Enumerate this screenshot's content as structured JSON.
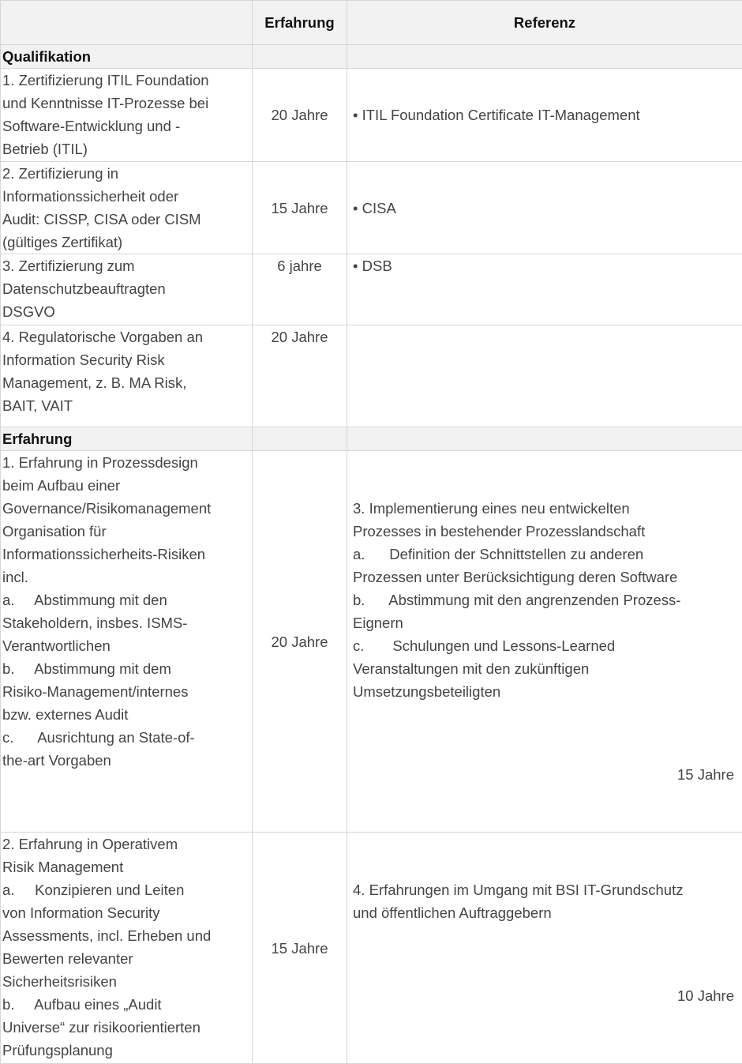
{
  "header": {
    "col1": "",
    "col2": "Erfahrung",
    "col3": "Referenz"
  },
  "sections": [
    {
      "title": "Qualifikation",
      "rows": [
        {
          "requirement": "1. Zertifizierung ITIL Foundation\nund Kenntnisse IT-Prozesse bei\nSoftware-Entwicklung und -\nBetrieb (ITIL)",
          "experience": "20 Jahre",
          "reference": "• ITIL Foundation Certificate IT-Management",
          "reference_years": ""
        },
        {
          "requirement": "2. Zertifizierung in\nInformationssicherheit oder\nAudit: CISSP, CISA oder CISM\n(gültiges Zertifikat)",
          "experience": "15 Jahre",
          "reference": "• CISA",
          "reference_years": ""
        },
        {
          "requirement": "3. Zertifizierung zum\nDatenschutzbeauftragten\nDSGVO",
          "experience": "6 jahre",
          "reference": "• DSB",
          "reference_years": ""
        },
        {
          "requirement": "4. Regulatorische Vorgaben an\nInformation Security Risk\nManagement, z. B. MA Risk,\nBAIT, VAIT",
          "experience": "20 Jahre",
          "reference": "",
          "reference_years": ""
        }
      ]
    },
    {
      "title": "Erfahrung",
      "rows": [
        {
          "requirement": "1. Erfahrung in Prozessdesign\nbeim Aufbau einer\nGovernance/Risikomanagement\nOrganisation für\nInformationssicherheits-Risiken\nincl.\na.     Abstimmung mit den\nStakeholdern, insbes. ISMS-\nVerantwortlichen\nb.     Abstimmung mit dem\nRisiko-Management/internes\nbzw. externes Audit\nc.      Ausrichtung an State-of-\nthe-art Vorgaben",
          "experience": "20 Jahre",
          "reference": "3. Implementierung eines neu entwickelten\nProzesses in bestehender Prozesslandschaft\na.      Definition der Schnittstellen zu anderen\nProzessen unter Berücksichtigung deren Software\nb.      Abstimmung mit den angrenzenden Prozess-\nEignern\nc.       Schulungen und Lessons-Learned\nVeranstaltungen mit den zukünftigen\nUmsetzungsbeteiligten",
          "reference_years": "15 Jahre"
        },
        {
          "requirement": "2. Erfahrung in Operativem\nRisik Management\na.     Konzipieren und Leiten\nvon Information Security\nAssessments, incl. Erheben und\nBewerten relevanter\nSicherheitsrisiken\nb.     Aufbau eines „Audit\nUniverse“ zur risikoorientierten\nPrüfungsplanung",
          "experience": "15 Jahre",
          "reference": "4. Erfahrungen im Umgang mit BSI IT-Grundschutz\nund öffentlichen Auftraggebern",
          "reference_years": "10 Jahre"
        }
      ]
    }
  ]
}
